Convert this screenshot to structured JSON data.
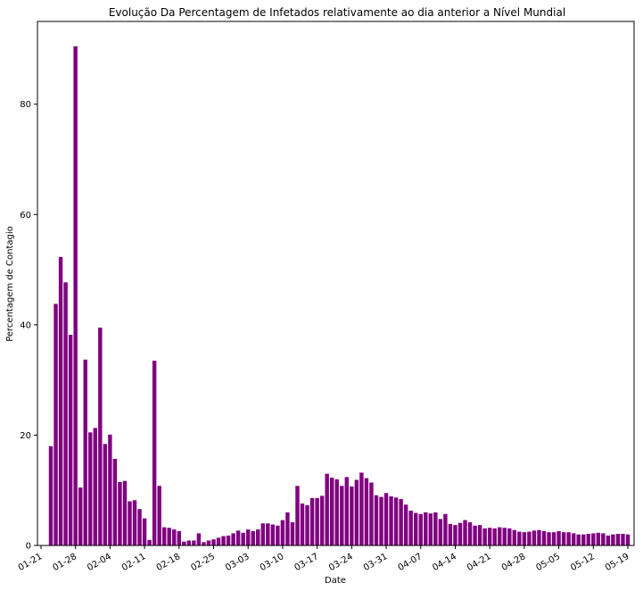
{
  "chart_data": {
    "type": "bar",
    "title": "Evolução Da Percentagem de Infetados relativamente ao dia anterior a Nível Mundial",
    "xlabel": "Date",
    "ylabel": "Percentagem de Contagio",
    "ylim": [
      0,
      95
    ],
    "y_ticks": [
      0,
      20,
      40,
      60,
      80
    ],
    "x_start_date": "01-23",
    "x_ticks": [
      "01-21",
      "01-28",
      "02-04",
      "02-11",
      "02-18",
      "02-25",
      "03-03",
      "03-10",
      "03-17",
      "03-24",
      "03-31",
      "04-07",
      "04-14",
      "04-21",
      "04-28",
      "05-05",
      "05-12",
      "05-19"
    ],
    "values": [
      18.0,
      43.8,
      52.3,
      47.7,
      38.2,
      90.5,
      10.5,
      33.7,
      20.5,
      21.3,
      39.5,
      18.4,
      20.1,
      15.7,
      11.5,
      11.7,
      8.0,
      8.2,
      6.6,
      4.9,
      1.0,
      33.5,
      10.8,
      3.3,
      3.2,
      2.9,
      2.6,
      0.7,
      0.9,
      0.9,
      2.2,
      0.6,
      0.9,
      1.1,
      1.4,
      1.7,
      1.8,
      2.2,
      2.7,
      2.3,
      2.9,
      2.6,
      2.9,
      4.0,
      4.0,
      3.8,
      3.6,
      4.6,
      6.0,
      4.2,
      10.8,
      7.6,
      7.3,
      8.6,
      8.6,
      9.0,
      13.0,
      12.3,
      12.0,
      10.8,
      12.4,
      10.7,
      11.9,
      13.2,
      12.2,
      11.4,
      9.1,
      8.8,
      9.5,
      8.9,
      8.7,
      8.4,
      7.4,
      6.3,
      5.9,
      5.7,
      6.0,
      5.8,
      6.0,
      4.8,
      5.7,
      3.9,
      3.7,
      4.1,
      4.6,
      4.2,
      3.6,
      3.7,
      3.1,
      3.2,
      3.1,
      3.3,
      3.2,
      3.1,
      2.8,
      2.5,
      2.4,
      2.5,
      2.7,
      2.8,
      2.6,
      2.4,
      2.4,
      2.6,
      2.4,
      2.4,
      2.2,
      2.0,
      2.0,
      2.1,
      2.2,
      2.3,
      2.2,
      1.8,
      2.0,
      2.1,
      2.1,
      2.0
    ],
    "bar_color": "#800080",
    "grid": false,
    "legend": "none"
  }
}
